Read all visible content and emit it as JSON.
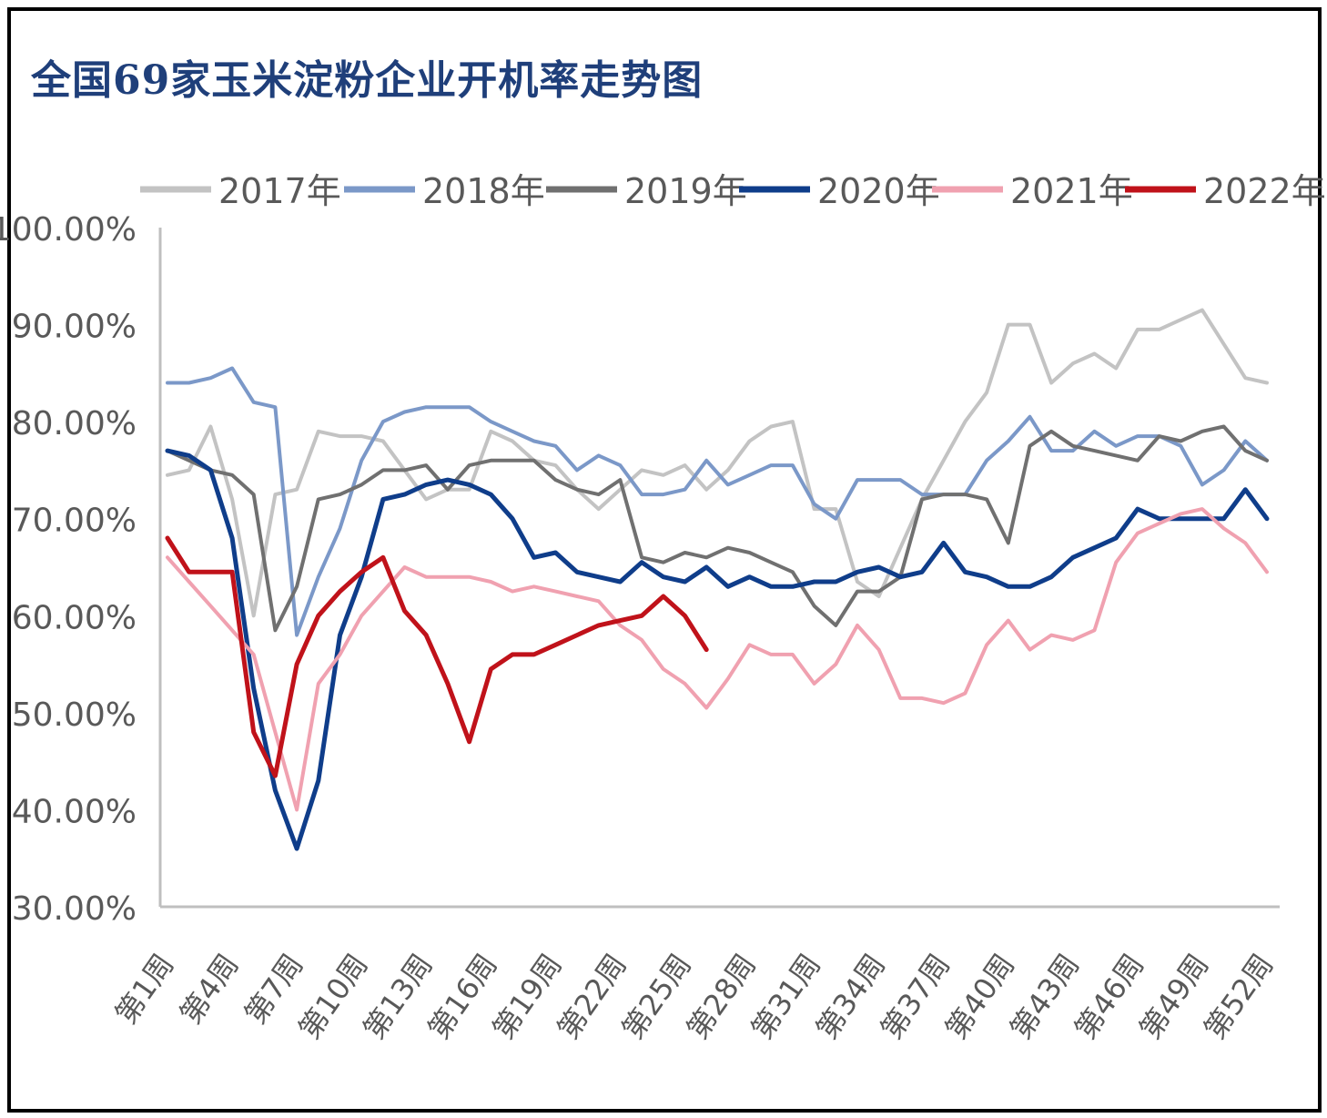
{
  "chart_data": {
    "type": "line",
    "title": "全国69家玉米淀粉企业开机率走势图",
    "ylim": [
      30,
      100
    ],
    "yticks": [
      "100.00%",
      "90.00%",
      "80.00%",
      "70.00%",
      "60.00%",
      "50.00%",
      "40.00%",
      "30.00%"
    ],
    "ytick_values": [
      100,
      90,
      80,
      70,
      60,
      50,
      40,
      30
    ],
    "x_count": 52,
    "xtick_labels": [
      "第1周",
      "第4周",
      "第7周",
      "第10周",
      "第13周",
      "第16周",
      "第19周",
      "第22周",
      "第25周",
      "第28周",
      "第31周",
      "第34周",
      "第37周",
      "第40周",
      "第43周",
      "第46周",
      "第49周",
      "第52周"
    ],
    "xtick_positions": [
      1,
      4,
      7,
      10,
      13,
      16,
      19,
      22,
      25,
      28,
      31,
      34,
      37,
      40,
      43,
      46,
      49,
      52
    ],
    "legend_position": "top",
    "series": [
      {
        "name": "2017年",
        "color": "#c3c3c3",
        "width": 4,
        "values": [
          74.5,
          75,
          79.5,
          72,
          60,
          72.5,
          73,
          79,
          78.5,
          78.5,
          78,
          75,
          72,
          73,
          73,
          79,
          78,
          76,
          75.5,
          73,
          71,
          73,
          75,
          74.5,
          75.5,
          73,
          75,
          78,
          79.5,
          80,
          71,
          71,
          63.5,
          62,
          67,
          72,
          76,
          80,
          83,
          90,
          90,
          84,
          86,
          87,
          85.5,
          89.5,
          89.5,
          90.5,
          91.5,
          88,
          84.5,
          84
        ]
      },
      {
        "name": "2018年",
        "color": "#7b98c8",
        "width": 4,
        "values": [
          84,
          84,
          84.5,
          85.5,
          82,
          81.5,
          58,
          64,
          69,
          76,
          80,
          81,
          81.5,
          81.5,
          81.5,
          80,
          79,
          78,
          77.5,
          75,
          76.5,
          75.5,
          72.5,
          72.5,
          73,
          76,
          73.5,
          74.5,
          75.5,
          75.5,
          71.5,
          70,
          74,
          74,
          74,
          72.5,
          72.5,
          72.5,
          76,
          78,
          80.5,
          77,
          77,
          79,
          77.5,
          78.5,
          78.5,
          77.5,
          73.5,
          75,
          78,
          76
        ]
      },
      {
        "name": "2019年",
        "color": "#707070",
        "width": 4,
        "values": [
          77,
          76,
          75,
          74.5,
          72.5,
          58.5,
          63,
          72,
          72.5,
          73.5,
          75,
          75,
          75.5,
          73,
          75.5,
          76,
          76,
          76,
          74,
          73,
          72.5,
          74,
          66,
          65.5,
          66.5,
          66,
          67,
          66.5,
          65.5,
          64.5,
          61,
          59,
          62.5,
          62.5,
          64,
          72,
          72.5,
          72.5,
          72,
          67.5,
          77.5,
          79,
          77.5,
          77,
          76.5,
          76,
          78.5,
          78,
          79,
          79.5,
          77,
          76
        ]
      },
      {
        "name": "2020年",
        "color": "#0f3d8a",
        "width": 5,
        "values": [
          77,
          76.5,
          75,
          68,
          52.5,
          42,
          36,
          43,
          58,
          64,
          72,
          72.5,
          73.5,
          74,
          73.5,
          72.5,
          70,
          66,
          66.5,
          64.5,
          64,
          63.5,
          65.5,
          64,
          63.5,
          65,
          63,
          64,
          63,
          63,
          63.5,
          63.5,
          64.5,
          65,
          64,
          64.5,
          67.5,
          64.5,
          64,
          63,
          63,
          64,
          66,
          67,
          68,
          71,
          70,
          70,
          70,
          70,
          73,
          70
        ]
      },
      {
        "name": "2021年",
        "color": "#f0a1b0",
        "width": 4,
        "values": [
          66,
          63.5,
          61,
          58.5,
          56,
          48,
          40,
          53,
          56,
          60,
          62.5,
          65,
          64,
          64,
          64,
          63.5,
          62.5,
          63,
          62.5,
          62,
          61.5,
          59,
          57.5,
          54.5,
          53,
          50.5,
          53.5,
          57,
          56,
          56,
          53,
          55,
          59,
          56.5,
          51.5,
          51.5,
          51,
          52,
          57,
          59.5,
          56.5,
          58,
          57.5,
          58.5,
          65.5,
          68.5,
          69.5,
          70.5,
          71,
          69,
          67.5,
          64.5
        ]
      },
      {
        "name": "2022年",
        "color": "#c0121a",
        "width": 5,
        "values": [
          68,
          64.5,
          64.5,
          64.5,
          48,
          43.5,
          55,
          60,
          62.5,
          64.5,
          66,
          60.5,
          58,
          53,
          47,
          54.5,
          56,
          56,
          57,
          58,
          59,
          59.5,
          60,
          62,
          60,
          56.5
        ]
      }
    ]
  }
}
